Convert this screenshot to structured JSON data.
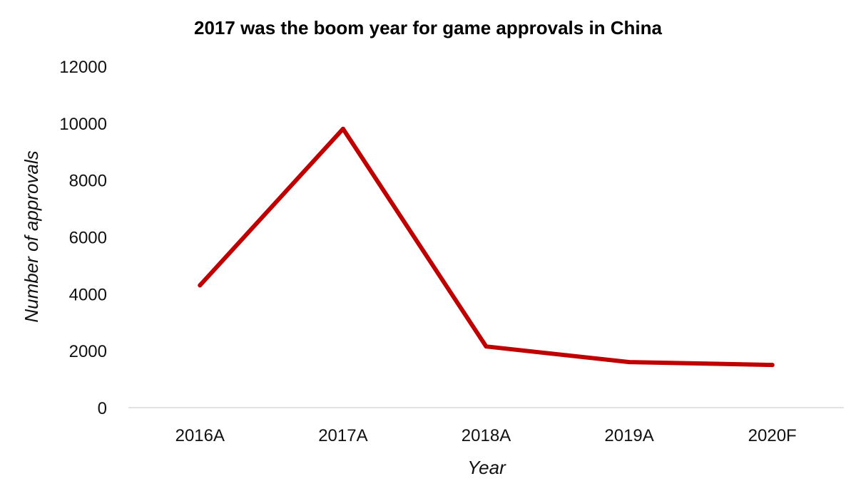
{
  "chart_data": {
    "type": "line",
    "title": "2017 was the boom year for game approvals in China",
    "xlabel": "Year",
    "ylabel": "Number of approvals",
    "categories": [
      "2016A",
      "2017A",
      "2018A",
      "2019A",
      "2020F"
    ],
    "series": [
      {
        "values": [
          4300,
          9800,
          2150,
          1600,
          1500
        ],
        "color": "#c00000"
      }
    ],
    "ylim": [
      0,
      12000
    ],
    "yticks": [
      "0",
      "2000",
      "4000",
      "6000",
      "8000",
      "10000",
      "12000"
    ],
    "grid": false,
    "legend": "none"
  }
}
